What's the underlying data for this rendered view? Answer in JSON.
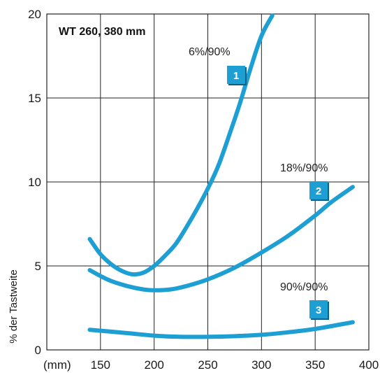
{
  "chart_data": {
    "type": "line",
    "title": "WT 260, 380 mm",
    "ylabel": "% der Tastweite",
    "x_unit_label": "(mm)",
    "xlim": [
      100,
      400
    ],
    "ylim": [
      0,
      20
    ],
    "xticks": [
      150,
      200,
      250,
      300,
      350,
      400
    ],
    "yticks": [
      0,
      5,
      10,
      15,
      20
    ],
    "grid": true,
    "line_color": "#1e9fd4",
    "badge_color": "#1e9fd4",
    "series": [
      {
        "name": "6%/90%",
        "badge": "1",
        "x": [
          140,
          150,
          160,
          170,
          180,
          190,
          200,
          210,
          220,
          230,
          240,
          250,
          260,
          270,
          280,
          290,
          300,
          310
        ],
        "y": [
          6.6,
          5.7,
          5.1,
          4.7,
          4.5,
          4.6,
          5.0,
          5.6,
          6.3,
          7.3,
          8.4,
          9.6,
          11.0,
          12.8,
          14.7,
          16.8,
          18.7,
          19.9
        ]
      },
      {
        "name": "18%/90%",
        "badge": "2",
        "x": [
          140,
          150,
          160,
          175,
          190,
          200,
          215,
          230,
          250,
          275,
          300,
          325,
          350,
          365,
          385
        ],
        "y": [
          4.75,
          4.4,
          4.1,
          3.8,
          3.6,
          3.55,
          3.6,
          3.8,
          4.2,
          4.9,
          5.8,
          6.8,
          8.0,
          8.8,
          9.7
        ]
      },
      {
        "name": "90%/90%",
        "badge": "3",
        "x": [
          140,
          175,
          200,
          225,
          250,
          275,
          300,
          325,
          350,
          385
        ],
        "y": [
          1.2,
          1.0,
          0.85,
          0.78,
          0.78,
          0.82,
          0.9,
          1.05,
          1.25,
          1.65
        ]
      }
    ]
  }
}
